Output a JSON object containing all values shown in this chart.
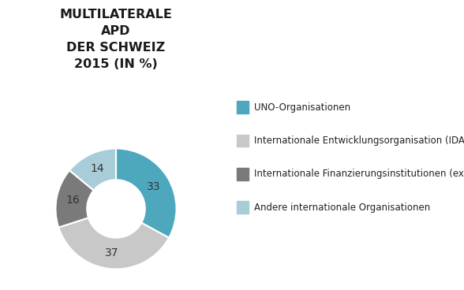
{
  "title": "MULTILATERALE\nAPD\nDER SCHWEIZ\n2015 (IN %)",
  "slices": [
    33,
    37,
    16,
    14
  ],
  "labels": [
    "33",
    "37",
    "16",
    "14"
  ],
  "colors": [
    "#4da8be",
    "#c8c8c8",
    "#7a7a7a",
    "#a8cdd8"
  ],
  "legend_labels": [
    "UNO-Organisationen",
    "Internationale Entwicklungsorganisation (IDA)",
    "Internationale Finanzierungsinstitutionen (exkl. IDA)",
    "Andere internationale Organisationen"
  ],
  "legend_colors": [
    "#4da8be",
    "#c8c8c8",
    "#7a7a7a",
    "#a8cdd8"
  ],
  "background_color": "#ffffff",
  "title_fontsize": 11.5,
  "label_fontsize": 10,
  "legend_fontsize": 8.5,
  "startangle": 90
}
